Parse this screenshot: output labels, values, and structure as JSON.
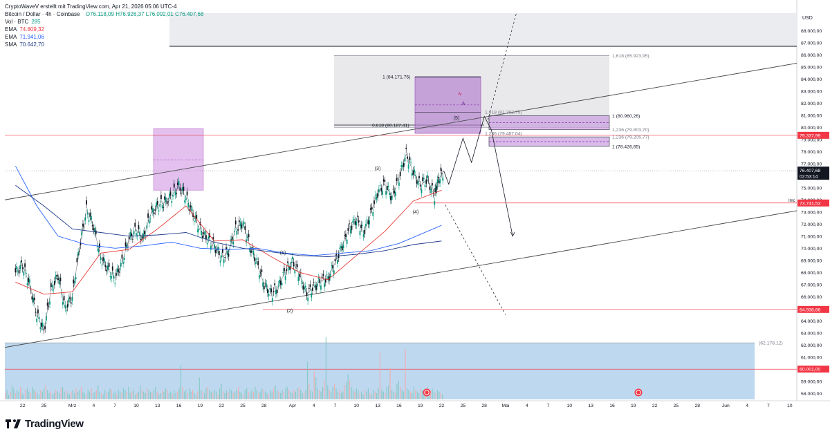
{
  "header": {
    "author_line": "CryptoWaveV erstellt mit TradingView.com, Apr 21, 2026 05:06 UTC-4",
    "symbol": "Bitcoin / Dollar · 4h · Coinbase",
    "ohlc": {
      "o": "O76.118,09",
      "h": "H76.926,37",
      "l": "L76.092,01",
      "c": "C76.407,68"
    },
    "vol_label": "Vol · BTC",
    "vol_value": "285",
    "ema1_label": "EMA",
    "ema1_value": "74.809,32",
    "ema2_label": "EMA",
    "ema2_value": "71.941,06",
    "sma_label": "SMA",
    "sma_value": "70.642,70"
  },
  "footer": {
    "brand": "TradingView"
  },
  "chart_data": {
    "type": "line",
    "title": "",
    "currency": "USD",
    "ylim": [
      57500,
      89500
    ],
    "y_ticks": [
      58000,
      59000,
      60000,
      61000,
      62000,
      63000,
      64000,
      65000,
      66000,
      67000,
      68000,
      69000,
      70000,
      71000,
      72000,
      73000,
      74000,
      75000,
      76000,
      77000,
      78000,
      79000,
      80000,
      81000,
      82000,
      83000,
      84000,
      85000,
      86000,
      87000,
      88000
    ],
    "y_tick_labels": [
      "58.000,00",
      "59.000,00",
      "60.000,00",
      "61.000,00",
      "62.000,00",
      "63.000,00",
      "64.000,00",
      "65.000,00",
      "66.000,00",
      "67.000,00",
      "68.000,00",
      "69.000,00",
      "70.000,00",
      "71.000,00",
      "72.000,00",
      "73.000,00",
      "74.000,00",
      "75.000,00",
      "76.000,00",
      "77.000,00",
      "78.000,00",
      "79.000,00",
      "80.000,00",
      "81.000,00",
      "82.000,00",
      "83.000,00",
      "84.000,00",
      "85.000,00",
      "86.000,00",
      "87.000,00",
      "88.000,00"
    ],
    "x_day_ticks": [
      {
        "label": "22",
        "d": -7
      },
      {
        "label": "25",
        "d": -4
      },
      {
        "label": "Mrz",
        "d": 0
      },
      {
        "label": "4",
        "d": 3
      },
      {
        "label": "7",
        "d": 6
      },
      {
        "label": "10",
        "d": 9
      },
      {
        "label": "13",
        "d": 12
      },
      {
        "label": "16",
        "d": 15
      },
      {
        "label": "19",
        "d": 18
      },
      {
        "label": "22",
        "d": 21
      },
      {
        "label": "25",
        "d": 24
      },
      {
        "label": "28",
        "d": 27
      },
      {
        "label": "Apr",
        "d": 31
      },
      {
        "label": "4",
        "d": 34
      },
      {
        "label": "7",
        "d": 37
      },
      {
        "label": "10",
        "d": 40
      },
      {
        "label": "13",
        "d": 43
      },
      {
        "label": "16",
        "d": 46
      },
      {
        "label": "19",
        "d": 49
      },
      {
        "label": "22",
        "d": 52
      },
      {
        "label": "25",
        "d": 55
      },
      {
        "label": "28",
        "d": 58
      },
      {
        "label": "Mai",
        "d": 61
      },
      {
        "label": "4",
        "d": 64
      },
      {
        "label": "7",
        "d": 67
      },
      {
        "label": "10",
        "d": 70
      },
      {
        "label": "13",
        "d": 73
      },
      {
        "label": "16",
        "d": 76
      },
      {
        "label": "19",
        "d": 79
      },
      {
        "label": "22",
        "d": 82
      },
      {
        "label": "25",
        "d": 85
      },
      {
        "label": "28",
        "d": 88
      },
      {
        "label": "Jun",
        "d": 92
      },
      {
        "label": "4",
        "d": 95
      },
      {
        "label": "7",
        "d": 98
      },
      {
        "label": "10",
        "d": 101
      }
    ],
    "price_path": [
      [
        -8,
        68000
      ],
      [
        -7,
        68600
      ],
      [
        -6,
        67000
      ],
      [
        -5,
        64500
      ],
      [
        -4,
        63200
      ],
      [
        -3,
        66500
      ],
      [
        -2,
        67800
      ],
      [
        -1,
        65000
      ],
      [
        0,
        66000
      ],
      [
        1,
        70000
      ],
      [
        2,
        73200
      ],
      [
        3,
        71800
      ],
      [
        4,
        69200
      ],
      [
        5,
        68300
      ],
      [
        6,
        67500
      ],
      [
        7,
        68800
      ],
      [
        8,
        70800
      ],
      [
        9,
        71500
      ],
      [
        10,
        70800
      ],
      [
        11,
        72800
      ],
      [
        12,
        73500
      ],
      [
        13,
        73800
      ],
      [
        14,
        74300
      ],
      [
        15,
        75200
      ],
      [
        16,
        74200
      ],
      [
        17,
        72800
      ],
      [
        18,
        71500
      ],
      [
        19,
        70800
      ],
      [
        20,
        70200
      ],
      [
        21,
        69200
      ],
      [
        22,
        69700
      ],
      [
        23,
        71600
      ],
      [
        24,
        72100
      ],
      [
        25,
        70200
      ],
      [
        26,
        68800
      ],
      [
        27,
        67000
      ],
      [
        28,
        66200
      ],
      [
        29,
        66800
      ],
      [
        30,
        68100
      ],
      [
        31,
        68900
      ],
      [
        32,
        67800
      ],
      [
        33,
        66200
      ],
      [
        34,
        66800
      ],
      [
        35,
        67300
      ],
      [
        36,
        67500
      ],
      [
        37,
        68800
      ],
      [
        38,
        70200
      ],
      [
        39,
        71600
      ],
      [
        40,
        72400
      ],
      [
        41,
        71300
      ],
      [
        42,
        72800
      ],
      [
        43,
        74600
      ],
      [
        44,
        75300
      ],
      [
        45,
        74200
      ],
      [
        46,
        75800
      ],
      [
        47,
        77800
      ],
      [
        48,
        76300
      ],
      [
        49,
        75200
      ],
      [
        50,
        75700
      ],
      [
        51,
        74300
      ],
      [
        51.5,
        75600
      ],
      [
        52.3,
        76400
      ]
    ],
    "ema_red": [
      [
        -8,
        67200
      ],
      [
        -4,
        66200
      ],
      [
        0,
        66400
      ],
      [
        4,
        69600
      ],
      [
        8,
        69900
      ],
      [
        12,
        71600
      ],
      [
        16,
        73500
      ],
      [
        20,
        70600
      ],
      [
        24,
        70700
      ],
      [
        28,
        69300
      ],
      [
        32,
        68000
      ],
      [
        36,
        67400
      ],
      [
        40,
        69400
      ],
      [
        44,
        71400
      ],
      [
        48,
        73900
      ],
      [
        52,
        74800
      ]
    ],
    "ema_blue": [
      [
        -8,
        76800
      ],
      [
        -5,
        73500
      ],
      [
        -2,
        71000
      ],
      [
        2,
        70300
      ],
      [
        6,
        70000
      ],
      [
        10,
        70200
      ],
      [
        14,
        70500
      ],
      [
        18,
        70000
      ],
      [
        22,
        69900
      ],
      [
        26,
        70000
      ],
      [
        30,
        69600
      ],
      [
        34,
        69400
      ],
      [
        38,
        69600
      ],
      [
        42,
        69800
      ],
      [
        46,
        70400
      ],
      [
        50,
        71400
      ],
      [
        52,
        71900
      ]
    ],
    "sma_blue": [
      [
        -8,
        75200
      ],
      [
        -4,
        73500
      ],
      [
        0,
        71600
      ],
      [
        4,
        71300
      ],
      [
        8,
        71000
      ],
      [
        12,
        71100
      ],
      [
        16,
        71300
      ],
      [
        20,
        70500
      ],
      [
        24,
        70000
      ],
      [
        28,
        69700
      ],
      [
        32,
        69400
      ],
      [
        36,
        69300
      ],
      [
        40,
        69500
      ],
      [
        44,
        69800
      ],
      [
        48,
        70300
      ],
      [
        52,
        70600
      ]
    ],
    "volume_bars": [
      4,
      6,
      3,
      5,
      9,
      7,
      4,
      6,
      5,
      8,
      4,
      3,
      6,
      7,
      5,
      4,
      8,
      6,
      5,
      4,
      3,
      6,
      5,
      7,
      9,
      6,
      4,
      5,
      3,
      4,
      6,
      5,
      4,
      7,
      8,
      5,
      6,
      4,
      3,
      5,
      6,
      4,
      7,
      5,
      6,
      8,
      5,
      4,
      3,
      6,
      5,
      7,
      4,
      5,
      6,
      9,
      5,
      4,
      3,
      6,
      4,
      5,
      7,
      6,
      4,
      5,
      3,
      6,
      5,
      4,
      7,
      6,
      5,
      8,
      4,
      5,
      6,
      3,
      4,
      5,
      9,
      6,
      5,
      4,
      7,
      6,
      5,
      4,
      6,
      8,
      5,
      3,
      4,
      6,
      5,
      7,
      6,
      4,
      5,
      3,
      6,
      4,
      5,
      7,
      22,
      8,
      5,
      6,
      4,
      7,
      5,
      6,
      4,
      3,
      5,
      14,
      6,
      5,
      4,
      7,
      8,
      6,
      5,
      4,
      6,
      5,
      3,
      7,
      10,
      5,
      4,
      6,
      5,
      7,
      6,
      4,
      5,
      6,
      8,
      5,
      4,
      3,
      6,
      7,
      5,
      4,
      6,
      5,
      8,
      6,
      4,
      5,
      7,
      6,
      5,
      4,
      3,
      6,
      5,
      7,
      9,
      6,
      5,
      4,
      6,
      5,
      7,
      8,
      6,
      5,
      4,
      6,
      5,
      7,
      8,
      6,
      4,
      5,
      6,
      24,
      10,
      6,
      5,
      18,
      14,
      7,
      6,
      5,
      8,
      12,
      40,
      9,
      6,
      5,
      8,
      10,
      7,
      5,
      6,
      4,
      5,
      9,
      11,
      16,
      12,
      8,
      6,
      5,
      7,
      6,
      4,
      5,
      3,
      6,
      5,
      7,
      4,
      3,
      6,
      5,
      4,
      7,
      30,
      6,
      5,
      4,
      8,
      9,
      20,
      6,
      5,
      4,
      10,
      12,
      8,
      6,
      5,
      32,
      7,
      6,
      5,
      4,
      8,
      6,
      5,
      4,
      7,
      6,
      5,
      4,
      8,
      5,
      6,
      7,
      5,
      4,
      6,
      5,
      4,
      3
    ],
    "volume_label": "Vol · BTC",
    "volume_value": "285",
    "horizontal_levels": [
      {
        "label": "79.337,99",
        "price": 79337.99,
        "color": "#f23645"
      },
      {
        "label": "73.741,53",
        "price": 73741.53,
        "color": "#f23645",
        "tag": "Imc"
      },
      {
        "label": "64.938,66",
        "price": 64938.66,
        "color": "#f23645"
      },
      {
        "label": "60.001,00",
        "price": 60001.0,
        "color": "#f23645"
      }
    ],
    "current_price": {
      "label": "76.407,68",
      "price": 76407.68,
      "countdown": "02:53:14"
    },
    "fib_labels": [
      {
        "text": "1,618 (85.923,95)",
        "price": 85923.95
      },
      {
        "text": "1 (84.171,75)",
        "price": 84171.75
      },
      {
        "text": "1,618 (81.262,75)",
        "price": 81262.75
      },
      {
        "text": "1 (80.960,26)",
        "price": 80960.26
      },
      {
        "text": "0,618 (80.187,41)",
        "price": 80187.41
      },
      {
        "text": "1,236 (79.803,70)",
        "price": 79803.7
      },
      {
        "text": "1,236 (79.487,04)",
        "price": 79487.04
      },
      {
        "text": "1,236 (79.205,77)",
        "price": 79205.77
      },
      {
        "text": "1 (78.426,65)",
        "price": 78426.65
      },
      {
        "text": "(62.178,12)",
        "price": 62178.12
      }
    ],
    "wave_labels": [
      {
        "text": "(1)",
        "d": 31,
        "price": 70000
      },
      {
        "text": "(2)",
        "d": 32,
        "price": 64700
      },
      {
        "text": "(3)",
        "d": 45,
        "price": 77000
      },
      {
        "text": "(4)",
        "d": 49,
        "price": 72800
      },
      {
        "text": "(5)",
        "d": 62,
        "price": 80700
      },
      {
        "text": "iv",
        "d": 66,
        "price": 82800
      },
      {
        "text": "A",
        "d": 66,
        "price": 81900
      }
    ],
    "legend": [
      "Vol · BTC",
      "EMA",
      "EMA",
      "SMA"
    ],
    "grid": false
  }
}
